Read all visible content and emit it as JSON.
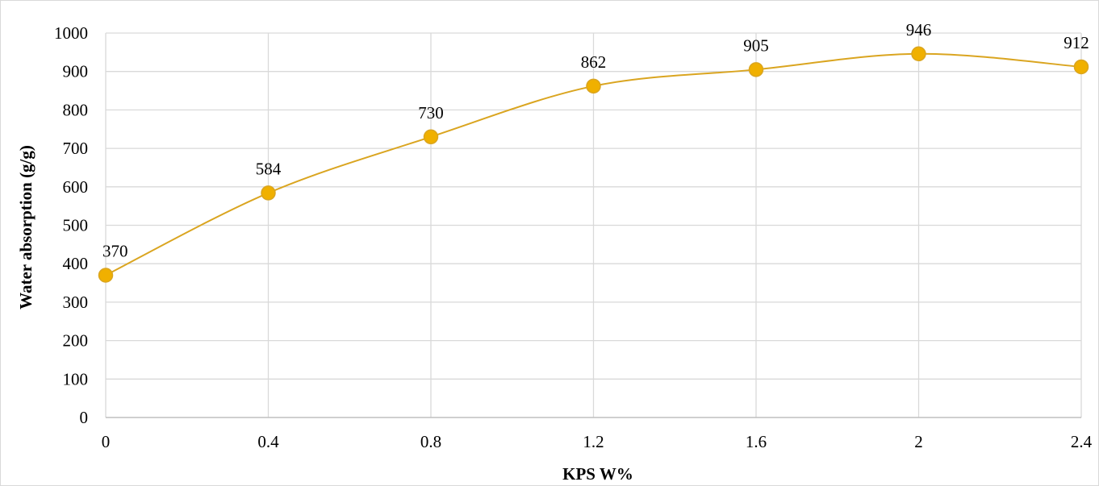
{
  "chart_data": {
    "type": "line",
    "smooth": true,
    "title": "",
    "xlabel": "KPS W%",
    "ylabel": "Water absorption (g/g)",
    "x": [
      0,
      0.4,
      0.8,
      1.2,
      1.6,
      2,
      2.4
    ],
    "x_tick_labels": [
      "0",
      "0.4",
      "0.8",
      "1.2",
      "1.6",
      "2",
      "2.4"
    ],
    "y_tick_labels": [
      "0",
      "100",
      "200",
      "300",
      "400",
      "500",
      "600",
      "700",
      "800",
      "900",
      "1000"
    ],
    "xlim": [
      0,
      2.4
    ],
    "ylim": [
      0,
      1000
    ],
    "y_step": 100,
    "grid": true,
    "legend": "none",
    "series": [
      {
        "values": [
          370,
          584,
          730,
          862,
          905,
          946,
          912
        ],
        "data_labels": [
          "370",
          "584",
          "730",
          "862",
          "905",
          "946",
          "912"
        ],
        "color": "#DAA520",
        "marker_fill": "#F0B000",
        "marker_edge": "#DAA520"
      }
    ],
    "grid_color": "#d9d9d9",
    "axis_color": "#bfbfbf"
  }
}
